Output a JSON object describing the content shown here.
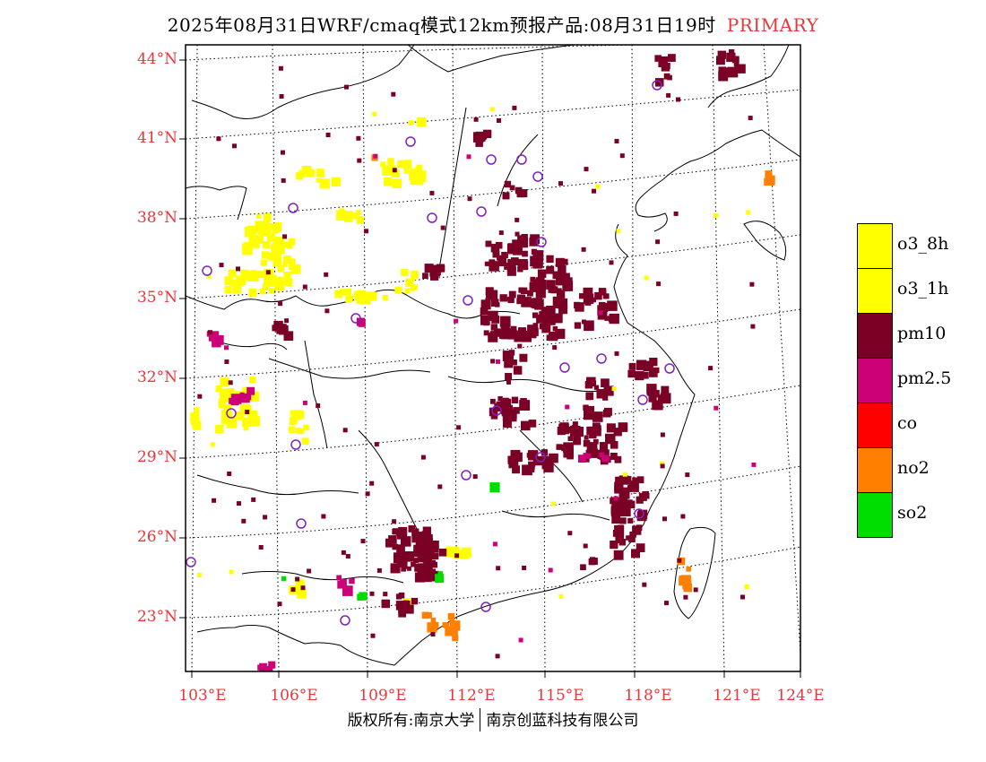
{
  "title": {
    "main": "2025年08月31日WRF/cmaq模式12km预报产品:08月31日19时",
    "tag": "PRIMARY"
  },
  "axes": {
    "lat_labels": [
      "44°N",
      "41°N",
      "38°N",
      "35°N",
      "32°N",
      "29°N",
      "26°N",
      "23°N"
    ],
    "lon_labels": [
      "103°E",
      "106°E",
      "109°E",
      "112°E",
      "115°E",
      "118°E",
      "121°E",
      "124°E"
    ]
  },
  "legend": [
    {
      "label": "o3_8h",
      "color": "#ffff00"
    },
    {
      "label": "o3_1h",
      "color": "#ffff00"
    },
    {
      "label": "pm10",
      "color": "#7a0026"
    },
    {
      "label": "pm2.5",
      "color": "#cc0077"
    },
    {
      "label": "co",
      "color": "#ff0000"
    },
    {
      "label": "no2",
      "color": "#ff7f00"
    },
    {
      "label": "so2",
      "color": "#00dd00"
    }
  ],
  "footer": {
    "left": "版权所有:南京大学",
    "right": "南京创蓝科技有限公司"
  },
  "colors": {
    "o3": "#ffff00",
    "pm10": "#7a0026",
    "pm25": "#cc0077",
    "no2": "#ff7f00",
    "so2": "#00dd00",
    "station": "#8020c0",
    "axis_label": "#e8363b"
  }
}
